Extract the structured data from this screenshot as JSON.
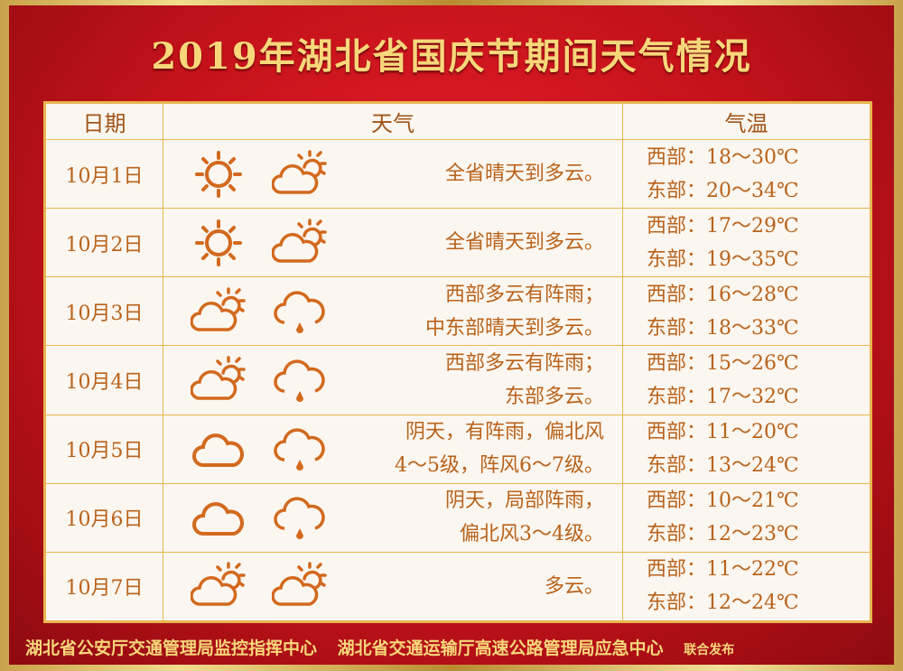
{
  "title": "2019年湖北省国庆节期间天气情况",
  "table": {
    "headers": {
      "date": "日期",
      "weather": "天气",
      "temp": "气温"
    },
    "rows": [
      {
        "date": "10月1日",
        "icons": [
          "sun",
          "partly-cloudy"
        ],
        "weather": [
          "全省晴天到多云。"
        ],
        "west": "西部：18～30℃",
        "east": "东部：20～34℃"
      },
      {
        "date": "10月2日",
        "icons": [
          "sun",
          "partly-cloudy"
        ],
        "weather": [
          "全省晴天到多云。"
        ],
        "west": "西部：17～29℃",
        "east": "东部：19～35℃"
      },
      {
        "date": "10月3日",
        "icons": [
          "partly-cloudy",
          "rain"
        ],
        "weather": [
          "西部多云有阵雨；",
          "中东部晴天到多云。"
        ],
        "west": "西部：16～28℃",
        "east": "东部：18～33℃"
      },
      {
        "date": "10月4日",
        "icons": [
          "partly-cloudy",
          "rain"
        ],
        "weather": [
          "西部多云有阵雨；",
          "东部多云。"
        ],
        "west": "西部：15～26℃",
        "east": "东部：17～32℃"
      },
      {
        "date": "10月5日",
        "icons": [
          "cloud",
          "rain"
        ],
        "weather": [
          "阴天，有阵雨，偏北风",
          "4～5级，阵风6～7级。"
        ],
        "west": "西部：11～20℃",
        "east": "东部：13～24℃"
      },
      {
        "date": "10月6日",
        "icons": [
          "cloud",
          "rain"
        ],
        "weather": [
          "阴天，局部阵雨，",
          "偏北风3～4级。"
        ],
        "west": "西部：10～21℃",
        "east": "东部：12～23℃"
      },
      {
        "date": "10月7日",
        "icons": [
          "partly-cloudy",
          "partly-cloudy"
        ],
        "weather": [
          "多云。"
        ],
        "west": "西部：11～22℃",
        "east": "东部：12～24℃"
      }
    ]
  },
  "footer": {
    "org1": "湖北省公安厅交通管理局监控指挥中心",
    "org2": "湖北省交通运输厅高速公路管理局应急中心",
    "note": "联合发布"
  },
  "colors": {
    "background": "#c4121a",
    "gold": "#f7d77a",
    "text": "#b8621b",
    "icon": "#d2691e"
  }
}
